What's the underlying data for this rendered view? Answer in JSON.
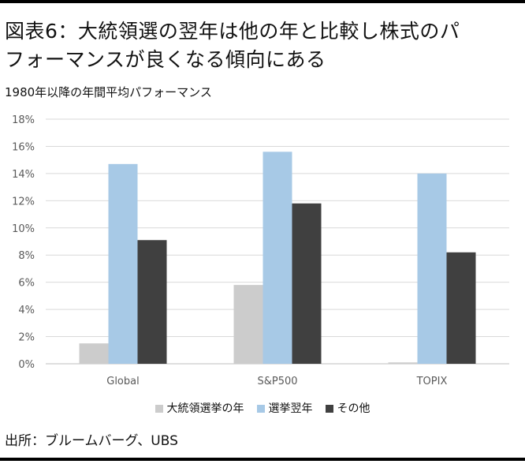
{
  "title_line1": "図表6：大統領選の翌年は他の年と比較し株式のパ",
  "title_line2": "フォーマンスが良くなる傾向にある",
  "subtitle": "1980年以降の年間平均パフォーマンス",
  "source": "出所：ブルームバーグ、UBS",
  "chart_data": {
    "type": "bar",
    "categories": [
      "Global",
      "S&P500",
      "TOPIX"
    ],
    "series": [
      {
        "name": "大統領選挙の年",
        "color": "#cccccc",
        "values": [
          1.5,
          5.8,
          0.1
        ]
      },
      {
        "name": "選挙翌年",
        "color": "#a7c9e6",
        "values": [
          14.7,
          15.6,
          14.0
        ]
      },
      {
        "name": "その他",
        "color": "#404040",
        "values": [
          9.1,
          11.8,
          8.2
        ]
      }
    ],
    "ylim": [
      0,
      18
    ],
    "yticks": [
      "0%",
      "2%",
      "4%",
      "6%",
      "8%",
      "10%",
      "12%",
      "14%",
      "16%",
      "18%"
    ],
    "grid": true,
    "legend_position": "bottom"
  }
}
